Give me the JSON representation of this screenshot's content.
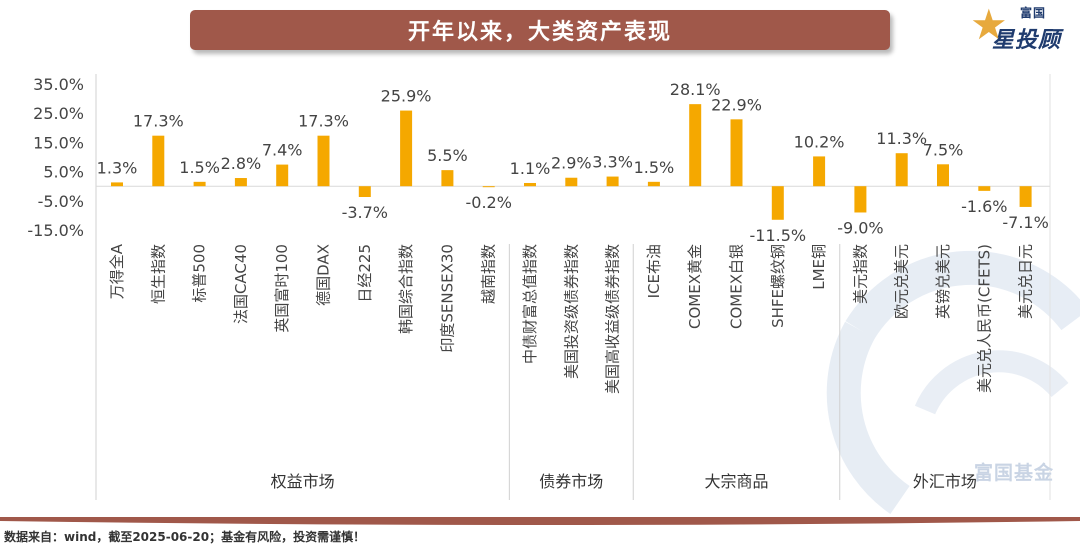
{
  "header": {
    "title": "开年以来，大类资产表现"
  },
  "logo": {
    "small_text": "富国",
    "main_text": "星投顾"
  },
  "watermark": {
    "text": "富国基金"
  },
  "footer": {
    "source_text": "数据来自：wind，截至2025-06-20；基金有风险，投资需谨慎！"
  },
  "colors": {
    "bar": "#f5a800",
    "banner": "#a0584a",
    "axis_text": "#444444"
  },
  "chart_data": {
    "type": "bar",
    "title": "",
    "ylim": [
      -15,
      35
    ],
    "yticks": [
      -15,
      -5,
      5,
      15,
      25,
      35
    ],
    "ytick_labels": [
      "-15.0%",
      "-5.0%",
      "5.0%",
      "15.0%",
      "25.0%",
      "35.0%"
    ],
    "grid": false,
    "categories": [
      "万得全A",
      "恒生指数",
      "标普500",
      "法国CAC40",
      "英国富时100",
      "德国DAX",
      "日经225",
      "韩国综合指数",
      "印度SENSEX30",
      "越南指数",
      "中债财富总值指数",
      "美国投资级债券指数",
      "美国高收益级债券指数",
      "ICE布油",
      "COMEX黄金",
      "COMEX白银",
      "SHFE螺纹钢",
      "LME铜",
      "美元指数",
      "欧元兑美元",
      "英镑兑美元",
      "美元兑人民币(CFETS)",
      "美元兑日元"
    ],
    "values": [
      1.3,
      17.3,
      1.5,
      2.8,
      7.4,
      17.3,
      -3.7,
      25.9,
      5.5,
      -0.2,
      1.1,
      2.9,
      3.3,
      1.5,
      28.1,
      22.9,
      -11.5,
      10.2,
      -9.0,
      11.3,
      7.5,
      -1.6,
      -7.1
    ],
    "value_labels": [
      "1.3%",
      "17.3%",
      "1.5%",
      "2.8%",
      "7.4%",
      "17.3%",
      "-3.7%",
      "25.9%",
      "5.5%",
      "-0.2%",
      "1.1%",
      "2.9%",
      "3.3%",
      "1.5%",
      "28.1%",
      "22.9%",
      "-11.5%",
      "10.2%",
      "-9.0%",
      "11.3%",
      "7.5%",
      "-1.6%",
      "-7.1%"
    ],
    "groups": [
      {
        "name": "权益市场",
        "count": 10
      },
      {
        "name": "债券市场",
        "count": 3
      },
      {
        "name": "大宗商品",
        "count": 5
      },
      {
        "name": "外汇市场",
        "count": 5
      }
    ]
  }
}
